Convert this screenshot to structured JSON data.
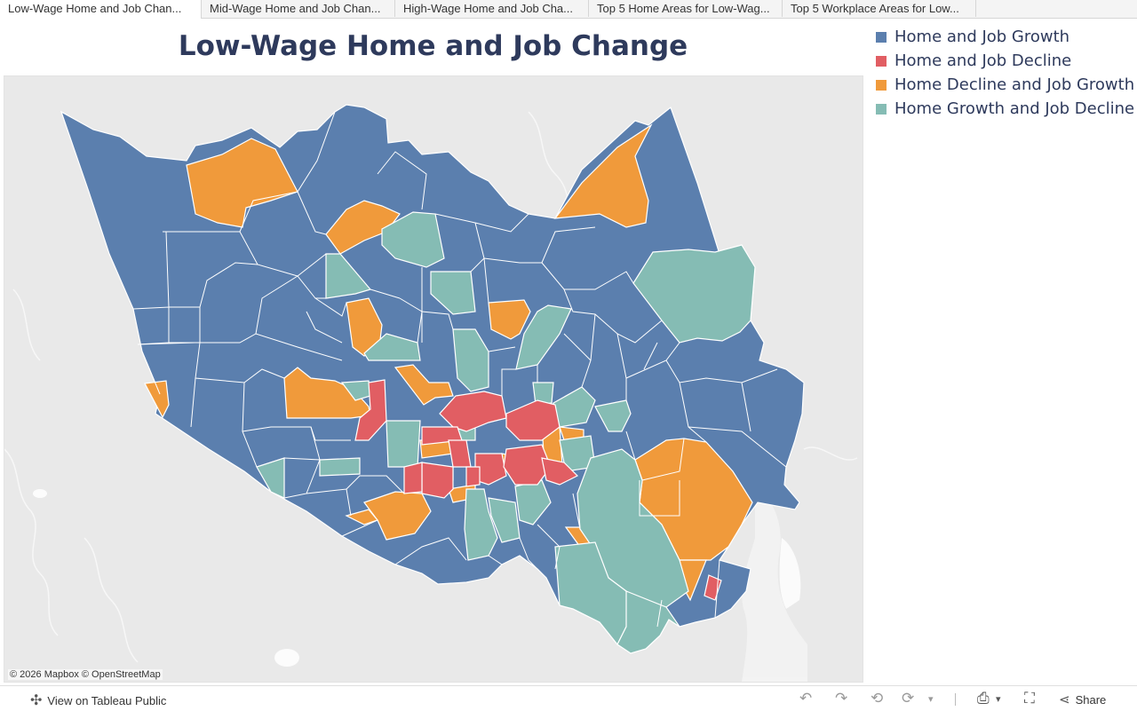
{
  "tabs": [
    {
      "label": "Low-Wage Home and Job Chan..."
    },
    {
      "label": "Mid-Wage Home and Job Chan..."
    },
    {
      "label": "High-Wage Home and Job Cha..."
    },
    {
      "label": "Top 5 Home Areas for Low-Wag..."
    },
    {
      "label": "Top 5 Workplace Areas for Low..."
    }
  ],
  "title": "Low-Wage Home and Job Change",
  "legend": [
    {
      "label": "Home and Job Growth",
      "color": "#5b7fae"
    },
    {
      "label": "Home and Job Decline",
      "color": "#e15e63"
    },
    {
      "label": "Home Decline and Job Growth",
      "color": "#f09a3b"
    },
    {
      "label": "Home Growth and Job Decline",
      "color": "#85bcb4"
    }
  ],
  "attribution": "© 2026 Mapbox  © OpenStreetMap",
  "footer": {
    "view_label": "View on Tableau Public",
    "share_label": "Share",
    "icons": {
      "tableau": "tableau-logo-icon",
      "undo": "undo-icon",
      "redo": "redo-icon",
      "revert": "revert-icon",
      "refresh": "refresh-icon",
      "download": "download-icon",
      "fullscreen": "fullscreen-icon",
      "share": "share-icon"
    }
  }
}
